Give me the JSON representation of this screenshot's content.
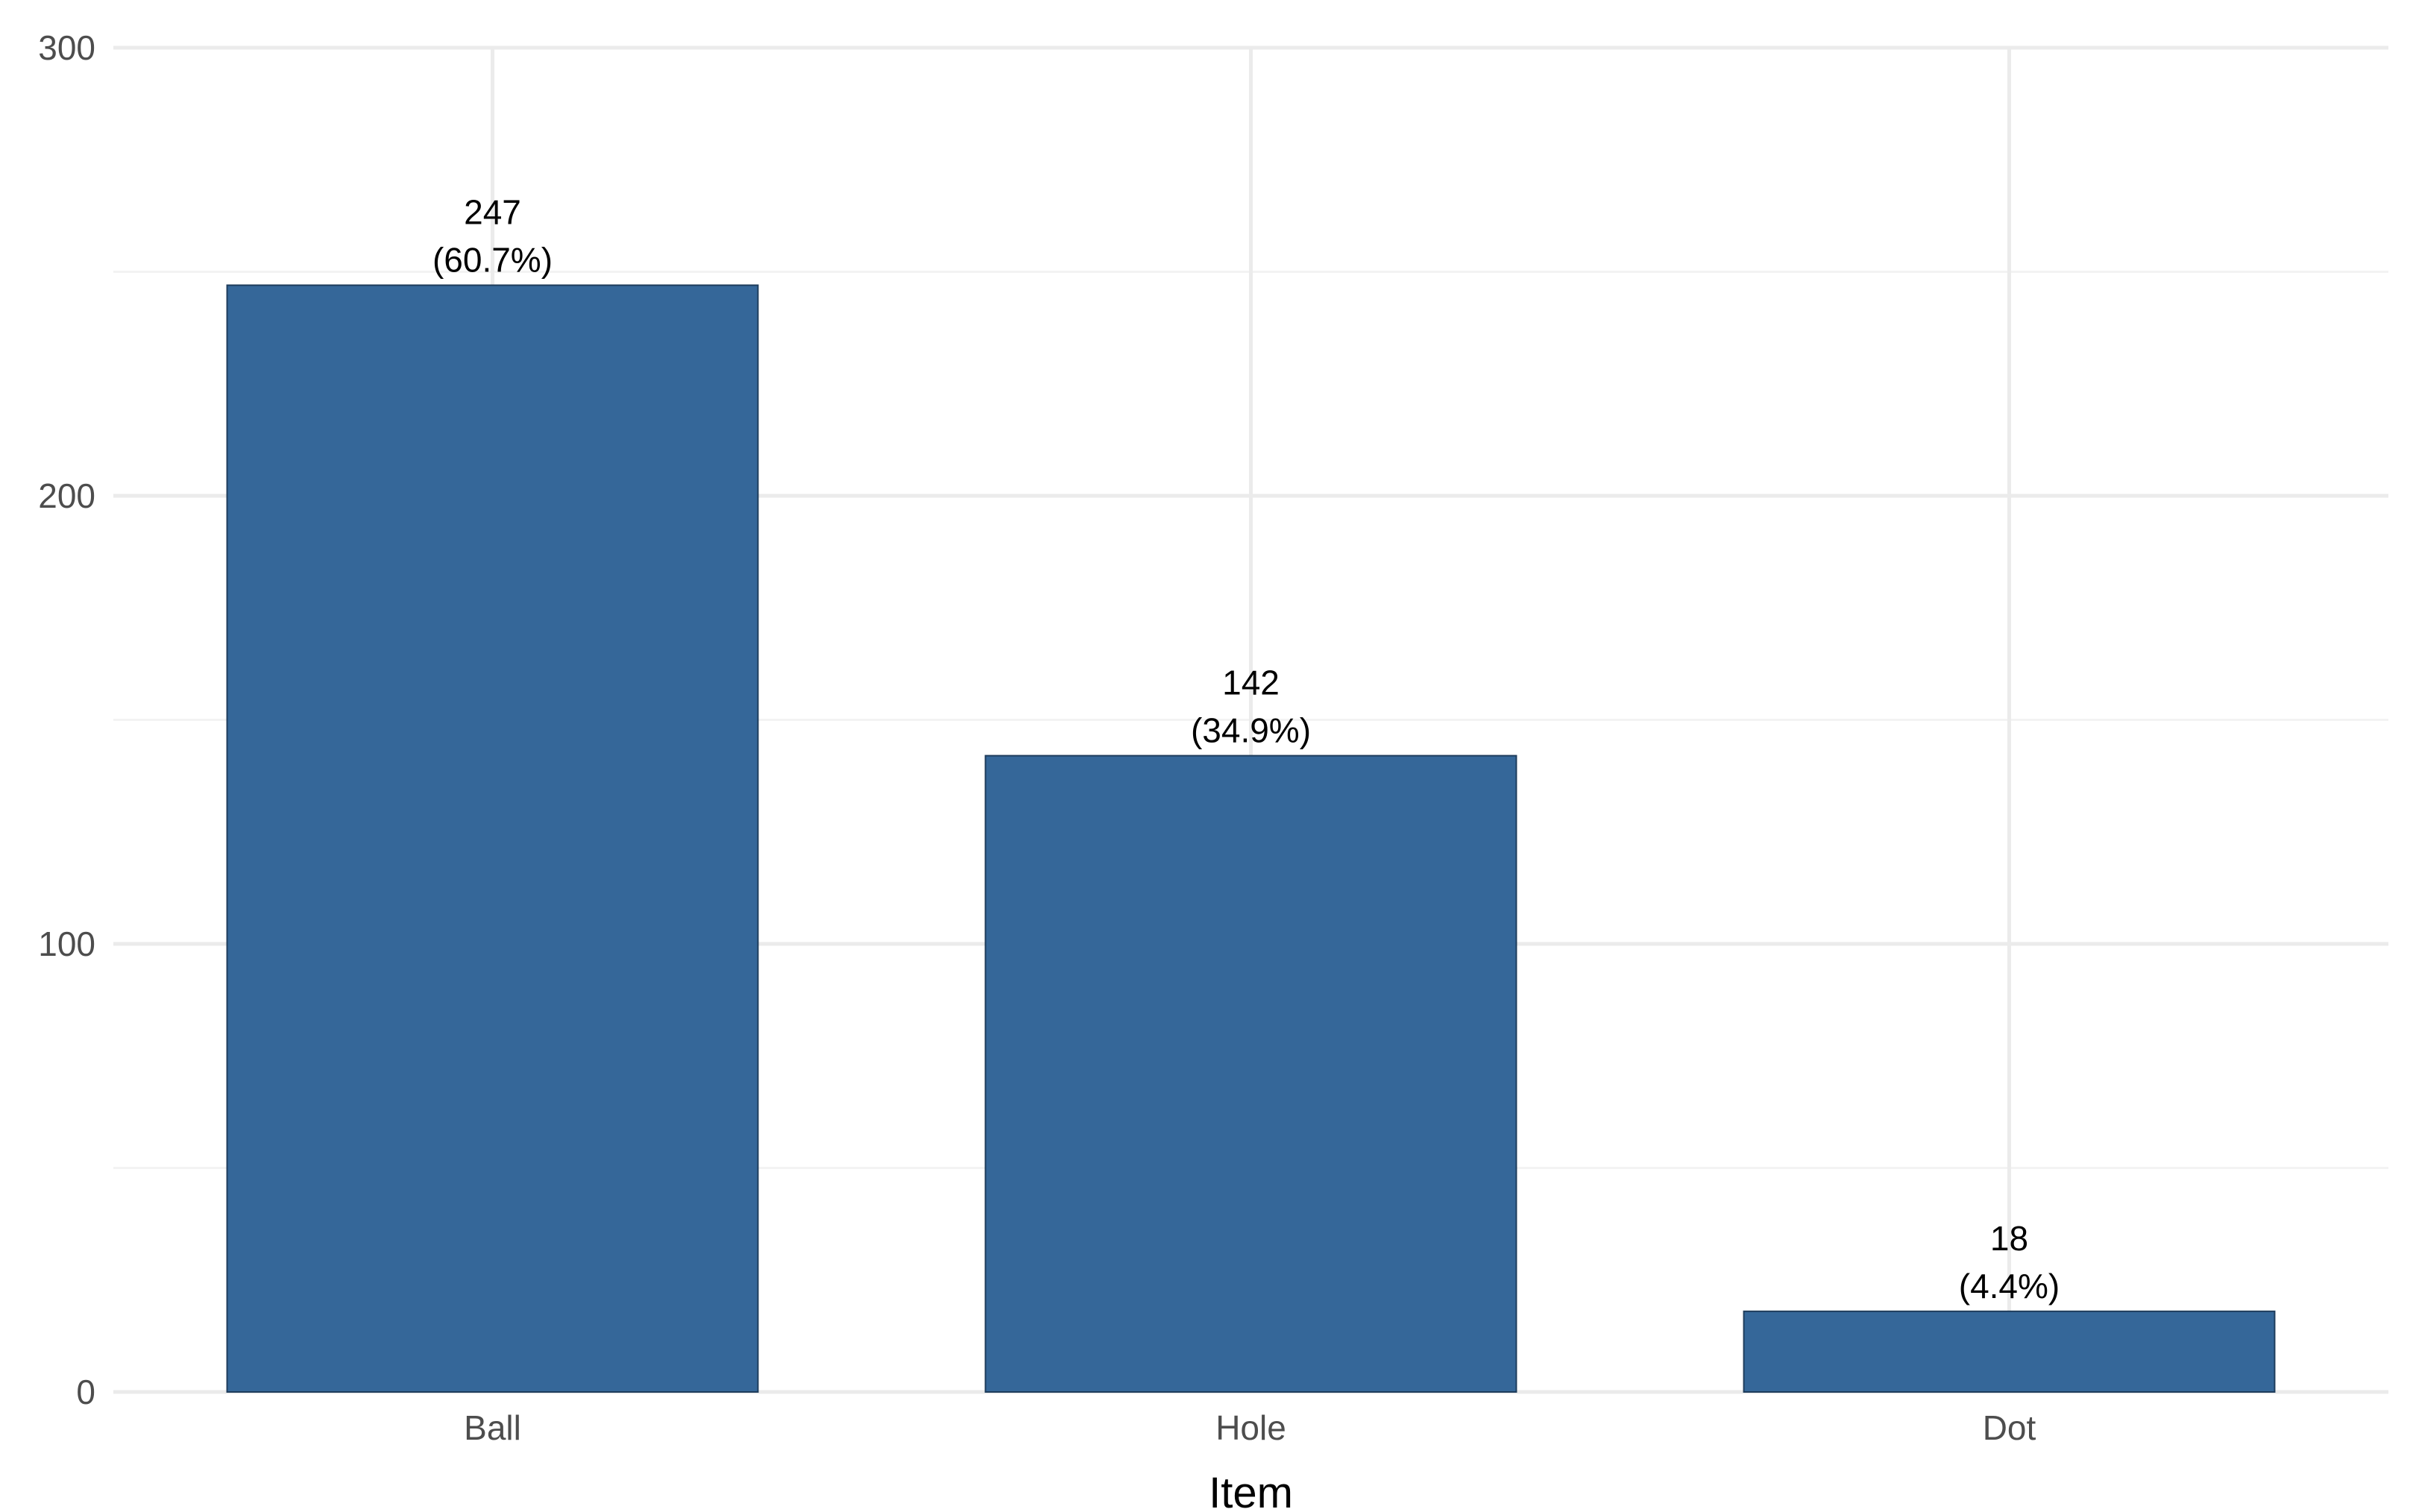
{
  "chart_data": {
    "type": "bar",
    "title": "",
    "xlabel": "Item",
    "ylabel": "",
    "categories": [
      "Ball",
      "Hole",
      "Dot"
    ],
    "values": [
      247,
      142,
      18
    ],
    "percent_labels": [
      "(60.7%)",
      "(34.9%)",
      "(4.4%)"
    ],
    "ylim": [
      0,
      300
    ],
    "yticks": [
      0,
      100,
      200,
      300
    ],
    "grid": true,
    "legend": "none"
  },
  "colors": {
    "bar_fill": "#356799",
    "bar_stroke": "#1f3d5c",
    "grid_major": "#ebebeb",
    "grid_minor": "#f3f3f3",
    "tick_text": "#4d4d4d",
    "label_text": "#000000"
  }
}
